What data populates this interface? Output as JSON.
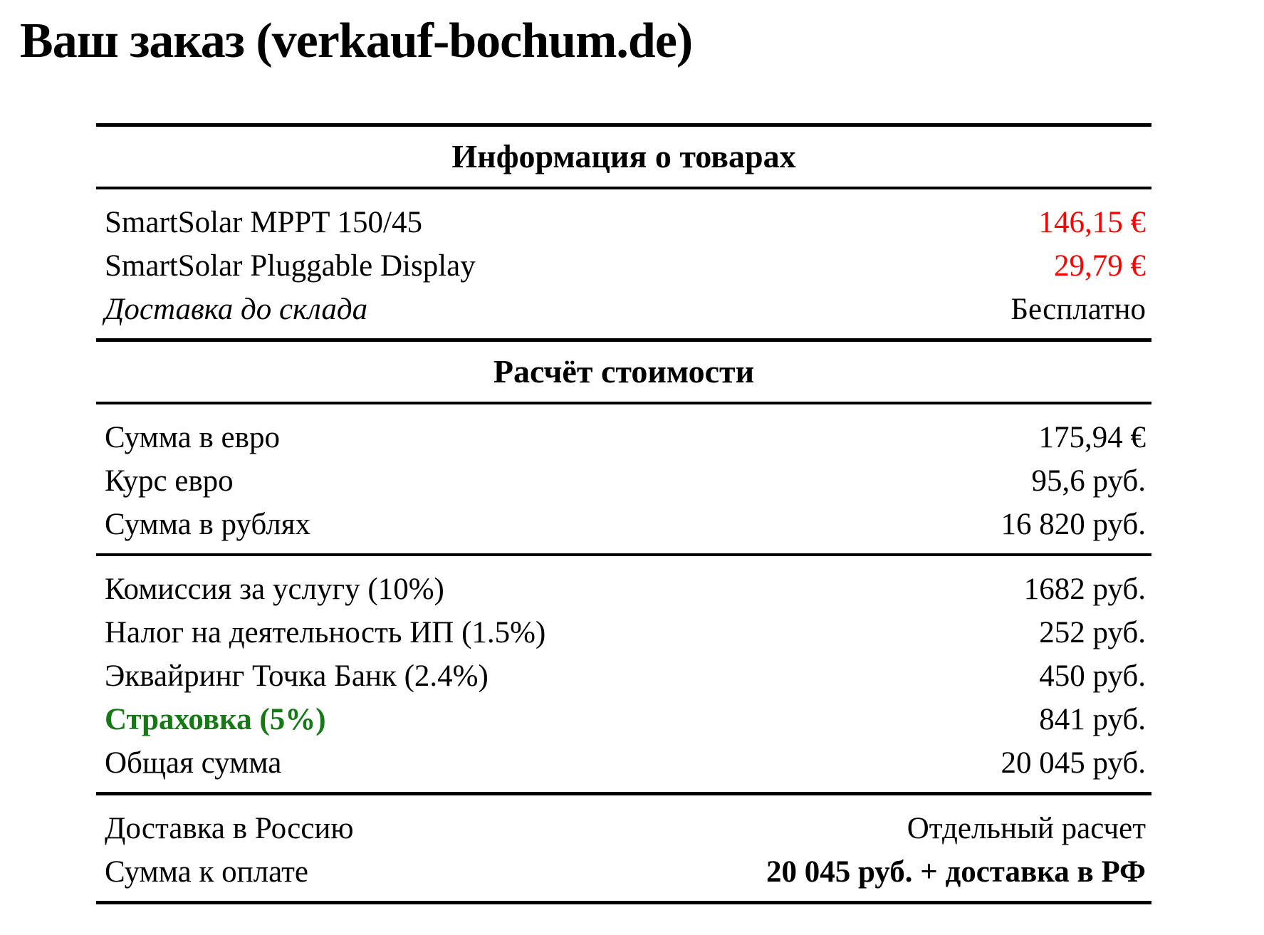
{
  "page": {
    "title": "Ваш заказ (verkauf-bochum.de)"
  },
  "table": {
    "products": {
      "header": "Информация о товарах",
      "rows": [
        {
          "label": "SmartSolar MPPT 150/45",
          "value": "146,15 €"
        },
        {
          "label": "SmartSolar Pluggable Display",
          "value": "29,79 €"
        },
        {
          "label": "Доставка до склада",
          "value": "Бесплатно"
        }
      ]
    },
    "calculation": {
      "header": "Расчёт стоимости",
      "base": [
        {
          "label": "Сумма в евро",
          "value": "175,94 €"
        },
        {
          "label": "Курс евро",
          "value": "95,6 руб."
        },
        {
          "label": "Сумма в рублях",
          "value": "16 820 руб."
        }
      ],
      "fees": [
        {
          "label": "Комиссия за услугу (10%)",
          "value": "1682 руб."
        },
        {
          "label": "Налог на деятельность ИП (1.5%)",
          "value": "252 руб."
        },
        {
          "label": "Эквайринг Точка Банк (2.4%)",
          "value": "450 руб."
        },
        {
          "label": "Страховка (5%)",
          "value": "841 руб."
        },
        {
          "label": "Общая сумма",
          "value": "20 045 руб."
        }
      ],
      "totals": [
        {
          "label": "Доставка в Россию",
          "value": "Отдельный расчет"
        },
        {
          "label": "Сумма к оплате",
          "value": "20 045 руб. + доставка в РФ"
        }
      ]
    }
  },
  "colors": {
    "price_red": "#ff0000",
    "insurance_green": "#157a15"
  }
}
